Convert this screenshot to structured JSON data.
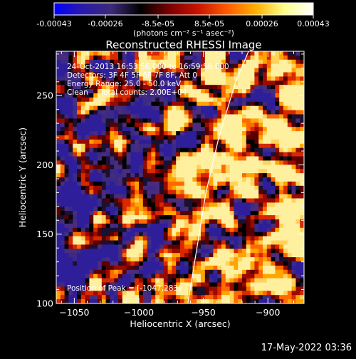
{
  "colorbar": {
    "tick_labels": [
      "-0.00043",
      "-0.00026",
      "-8.5e-05",
      "8.5e-05",
      "0.00026",
      "0.00043"
    ],
    "unit_label": "(photons cm⁻² s⁻¹ asec⁻²)",
    "range": [
      -0.00043,
      0.00043
    ],
    "stops": [
      "#0000ff",
      "#2a1aa8",
      "#3c2a78",
      "#000000",
      "#7a0000",
      "#c81400",
      "#ff5a00",
      "#ffb000",
      "#ffff8c",
      "#ffffff"
    ]
  },
  "info": {
    "line1": "24-Oct-2013 16:53:56.000 to 16:59:56.000",
    "line2": "Detectors: 3F 4F 5F 6F 7F 8F, Att 0",
    "line3": "Energy Range: 25.0 - 50.0 keV",
    "line4": "Clean     Total counts: 2.00E+04"
  },
  "peak_text": "Position of Peak = [-1047,283]",
  "timestamp": "17-May-2022 03:36",
  "chart_data": {
    "type": "heatmap",
    "title": "Reconstructed RHESSI Image",
    "xlabel": "Heliocentric X (arcsec)",
    "ylabel": "Heliocentric Y (arcsec)",
    "xlim": [
      -1064,
      -872
    ],
    "ylim": [
      100,
      282
    ],
    "xticks": [
      -1050,
      -1000,
      -950,
      -900
    ],
    "yticks": [
      100,
      150,
      200,
      250
    ],
    "limb_curve": [
      [
        -962,
        100
      ],
      [
        -955,
        140
      ],
      [
        -948,
        180
      ],
      [
        -938,
        220
      ],
      [
        -925,
        260
      ],
      [
        -915,
        282
      ]
    ],
    "peak": [
      -1047,
      283
    ],
    "grid": false
  }
}
